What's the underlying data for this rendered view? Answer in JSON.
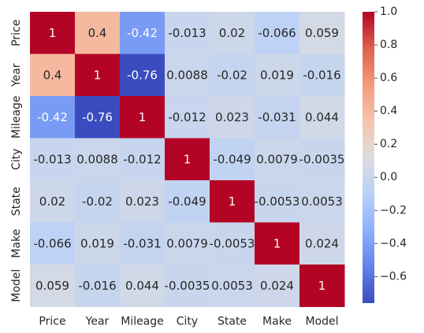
{
  "chart_data": {
    "type": "heatmap",
    "x_categories": [
      "Price",
      "Year",
      "Mileage",
      "City",
      "State",
      "Make",
      "Model"
    ],
    "y_categories": [
      "Price",
      "Year",
      "Mileage",
      "City",
      "State",
      "Make",
      "Model"
    ],
    "cells": [
      [
        "1",
        "0.4",
        "-0.42",
        "-0.013",
        "0.02",
        "-0.066",
        "0.059"
      ],
      [
        "0.4",
        "1",
        "-0.76",
        "0.0088",
        "-0.02",
        "0.019",
        "-0.016"
      ],
      [
        "-0.42",
        "-0.76",
        "1",
        "-0.012",
        "0.023",
        "-0.031",
        "0.044"
      ],
      [
        "-0.013",
        "0.0088",
        "-0.012",
        "1",
        "-0.049",
        "0.0079",
        "-0.0035"
      ],
      [
        "0.02",
        "-0.02",
        "0.023",
        "-0.049",
        "1",
        "-0.0053",
        "0.0053"
      ],
      [
        "-0.066",
        "0.019",
        "-0.031",
        "0.0079",
        "-0.0053",
        "1",
        "0.024"
      ],
      [
        "0.059",
        "-0.016",
        "0.044",
        "-0.0035",
        "0.0053",
        "0.024",
        "1"
      ]
    ],
    "colormap": "coolwarm",
    "vmin": -0.76,
    "vmax": 1.0,
    "colorbar_ticks": [
      "1.0",
      "0.8",
      "0.6",
      "0.4",
      "0.2",
      "0.0",
      "−0.2",
      "−0.4",
      "−0.6"
    ],
    "colorbar_tick_values": [
      1.0,
      0.8,
      0.6,
      0.4,
      0.2,
      0.0,
      -0.2,
      -0.4,
      -0.6
    ],
    "colorbar_position": "right",
    "grid": false
  }
}
